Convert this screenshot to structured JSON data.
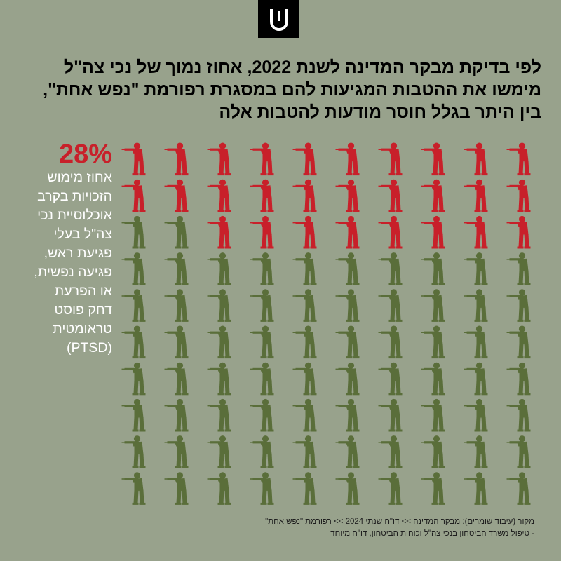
{
  "logo": {
    "icon": "shomrim-logo-icon",
    "bg_color": "#000000",
    "fg_color": "#ffffff"
  },
  "headline": "לפי בדיקת מבקר המדינה לשנת 2022, אחוז נמוך של נכי צה\"ל מימשו את ההטבות המגיעות להם במסגרת רפורמת \"נפש אחת\", בין היתר בגלל חוסר מודעות להטבות אלה",
  "stat": {
    "percent_label": "28%",
    "description": "אחוז מימוש הזכויות בקרב אוכלוסיית נכי צה\"ל בעלי פגיעת ראש, פגיעה נפשית, או הפרעת דחק פוסט טראומטית (PTSD)"
  },
  "chart_data": {
    "type": "pictogram",
    "icon": "soldier-aiming-rifle-icon",
    "total_icons": 100,
    "columns": 10,
    "rows": 10,
    "highlighted_percent": 28,
    "colors": {
      "highlighted": "#c8202a",
      "base": "#5a6e3a",
      "background": "#98a28c"
    }
  },
  "footnote": {
    "line1": "מקור (עיבוד שומרים): מבקר המדינה >> דו\"ח שנתי 2024 >> רפורמת \"נפש אחת\"",
    "line2": "- טיפול משרד הביטחון בנכי צה\"ל וכוחות הביטחון, דו\"ח מיוחד"
  }
}
